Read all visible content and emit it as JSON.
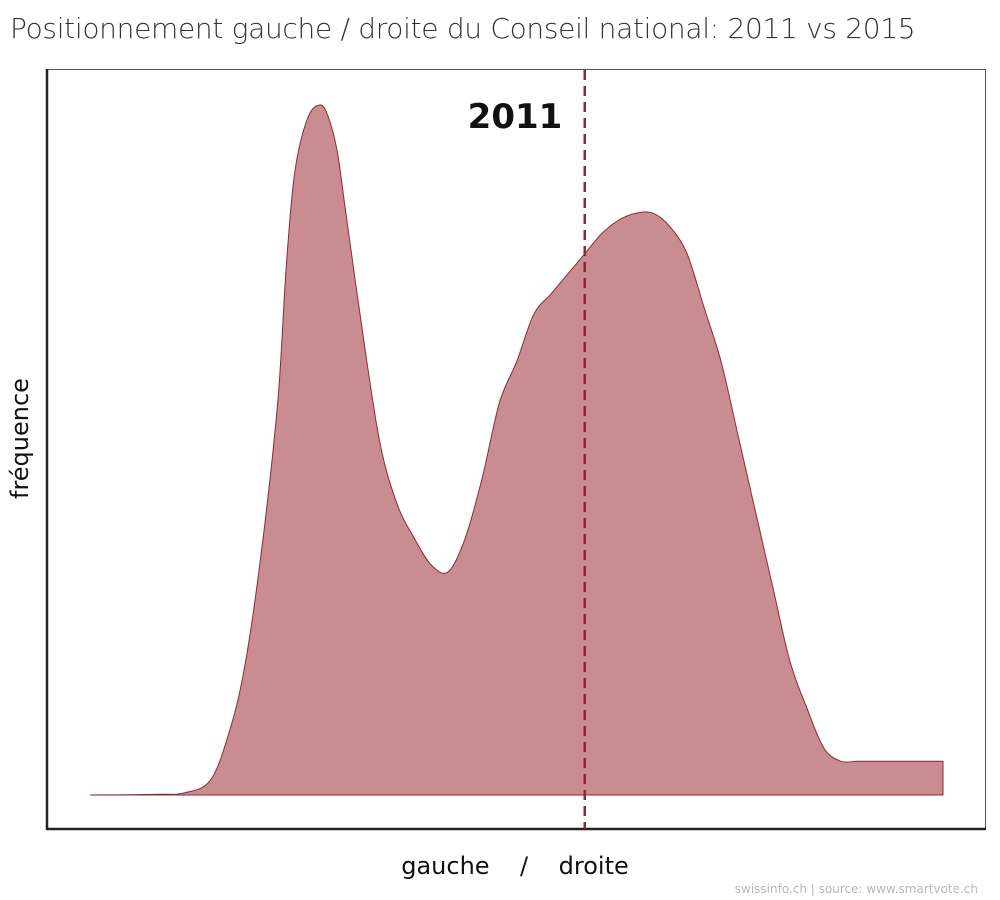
{
  "title": "Positionnement gauche / droite du Conseil national: 2011 vs 2015",
  "source": "swissinfo.ch | source: www.smartvote.ch",
  "chart_data": {
    "type": "area",
    "title": "Positionnement gauche / droite du Conseil national: 2011 vs 2015",
    "xlabel": "gauche    /    droite",
    "ylabel": "fréquence",
    "annotation": "2011",
    "grid": false,
    "xlim": [
      0,
      1
    ],
    "ylim": [
      0,
      1.1
    ],
    "fill_color": "#c98d91",
    "line_color": "#8b2a33",
    "reference_line": {
      "x": 0.58,
      "style": "dashed",
      "color": "#8b2a33"
    },
    "series": [
      {
        "x": [
          0.0,
          0.08,
          0.11,
          0.14,
          0.16,
          0.18,
          0.2,
          0.22,
          0.23,
          0.24,
          0.255,
          0.27,
          0.28,
          0.29,
          0.3,
          0.32,
          0.34,
          0.36,
          0.38,
          0.4,
          0.42,
          0.44,
          0.46,
          0.48,
          0.5,
          0.52,
          0.54,
          0.56,
          0.58,
          0.6,
          0.62,
          0.64,
          0.66,
          0.68,
          0.7,
          0.72,
          0.74,
          0.76,
          0.78,
          0.8,
          0.82,
          0.84,
          0.86,
          0.88,
          0.9,
          0.92,
          0.94,
          0.96,
          0.98,
          1.0
        ],
        "y": [
          0.0,
          0.001,
          0.003,
          0.02,
          0.08,
          0.18,
          0.35,
          0.58,
          0.78,
          0.92,
          1.0,
          1.02,
          1.0,
          0.95,
          0.86,
          0.68,
          0.52,
          0.43,
          0.38,
          0.34,
          0.33,
          0.38,
          0.47,
          0.58,
          0.64,
          0.71,
          0.74,
          0.77,
          0.8,
          0.83,
          0.85,
          0.86,
          0.86,
          0.84,
          0.8,
          0.72,
          0.64,
          0.53,
          0.42,
          0.31,
          0.2,
          0.13,
          0.07,
          0.05,
          0.05,
          0.05,
          0.05,
          0.05,
          0.05,
          0.05
        ]
      }
    ]
  }
}
